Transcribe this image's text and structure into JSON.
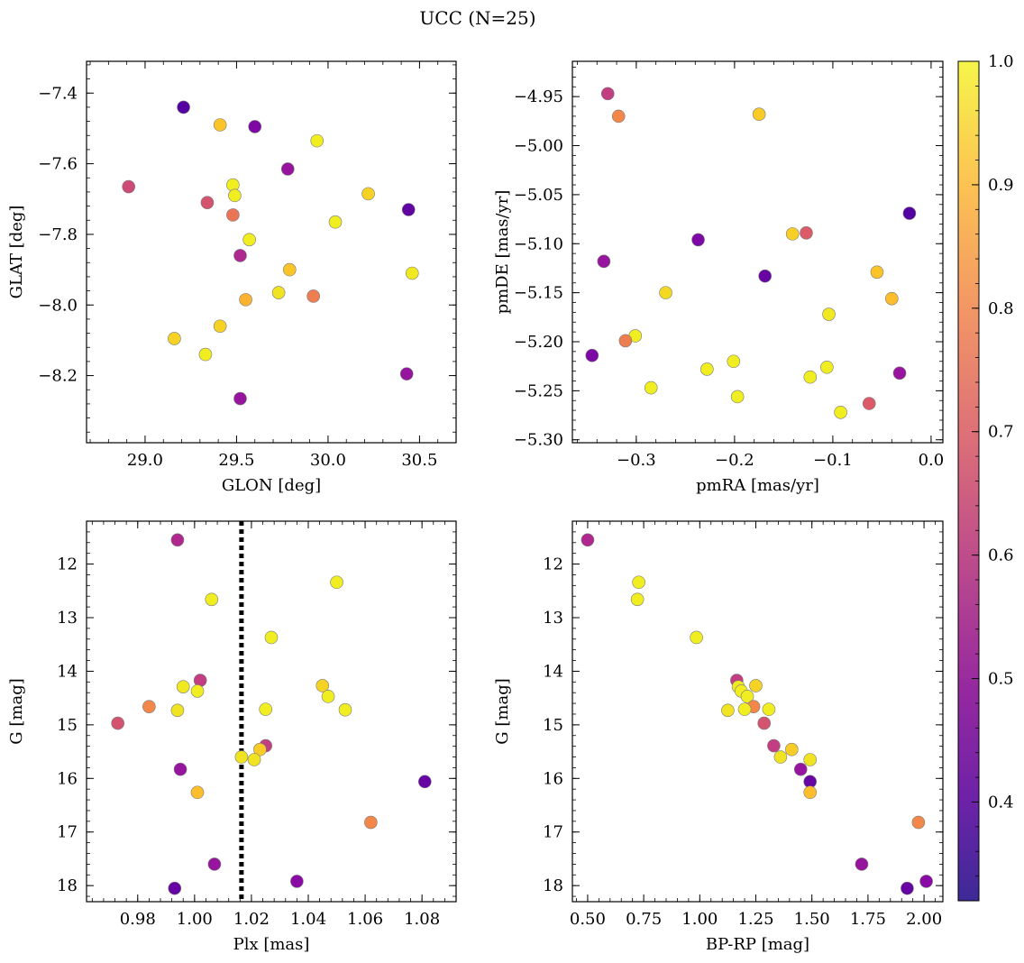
{
  "title": "UCC (N=25)",
  "colorbar": {
    "ticks": [
      0.4,
      0.5,
      0.6,
      0.7,
      0.8,
      0.9,
      1.0
    ],
    "tick_labels": [
      "0.4",
      "0.5",
      "0.6",
      "0.7",
      "0.8",
      "0.9",
      "1.0"
    ],
    "range": [
      0.32,
      1.0
    ],
    "colormap": "plasma"
  },
  "chart_data": [
    {
      "type": "scatter",
      "xlabel": "GLON [deg]",
      "ylabel": "GLAT [deg]",
      "xlim": [
        28.68,
        30.7
      ],
      "ylim": [
        -8.39,
        -7.31
      ],
      "y_inverted": false,
      "xticks": [
        29.0,
        29.5,
        30.0,
        30.5
      ],
      "xtick_labels": [
        "29.0",
        "29.5",
        "30.0",
        "30.5"
      ],
      "yticks": [
        -8.2,
        -8.0,
        -7.8,
        -7.6,
        -7.4
      ],
      "ytick_labels": [
        "−8.2",
        "−8.0",
        "−7.8",
        "−7.6",
        "−7.4"
      ],
      "points": [
        {
          "x": 29.21,
          "y": -7.44,
          "c": 0.33
        },
        {
          "x": 29.41,
          "y": -7.49,
          "c": 0.84
        },
        {
          "x": 29.6,
          "y": -7.495,
          "c": 0.4
        },
        {
          "x": 29.94,
          "y": -7.535,
          "c": 0.97
        },
        {
          "x": 29.78,
          "y": -7.615,
          "c": 0.45
        },
        {
          "x": 28.91,
          "y": -7.665,
          "c": 0.58
        },
        {
          "x": 29.34,
          "y": -7.71,
          "c": 0.6
        },
        {
          "x": 29.48,
          "y": -7.66,
          "c": 0.97
        },
        {
          "x": 29.49,
          "y": -7.69,
          "c": 0.97
        },
        {
          "x": 29.48,
          "y": -7.745,
          "c": 0.68
        },
        {
          "x": 30.22,
          "y": -7.685,
          "c": 0.88
        },
        {
          "x": 30.44,
          "y": -7.73,
          "c": 0.35
        },
        {
          "x": 30.04,
          "y": -7.765,
          "c": 0.97
        },
        {
          "x": 29.57,
          "y": -7.815,
          "c": 0.97
        },
        {
          "x": 29.52,
          "y": -7.86,
          "c": 0.5
        },
        {
          "x": 29.79,
          "y": -7.9,
          "c": 0.84
        },
        {
          "x": 30.46,
          "y": -7.91,
          "c": 0.95
        },
        {
          "x": 29.73,
          "y": -7.965,
          "c": 0.93
        },
        {
          "x": 29.92,
          "y": -7.975,
          "c": 0.7
        },
        {
          "x": 29.55,
          "y": -7.985,
          "c": 0.8
        },
        {
          "x": 29.41,
          "y": -8.06,
          "c": 0.88
        },
        {
          "x": 29.16,
          "y": -8.095,
          "c": 0.88
        },
        {
          "x": 29.33,
          "y": -8.14,
          "c": 0.97
        },
        {
          "x": 30.43,
          "y": -8.195,
          "c": 0.45
        },
        {
          "x": 29.52,
          "y": -8.265,
          "c": 0.45
        }
      ]
    },
    {
      "type": "scatter",
      "xlabel": "pmRA [mas/yr]",
      "ylabel": "pmDE [mas/yr]",
      "xlim": [
        -0.365,
        0.012
      ],
      "ylim": [
        -5.303,
        -4.914
      ],
      "y_inverted": false,
      "xticks": [
        -0.3,
        -0.2,
        -0.1,
        0.0
      ],
      "xtick_labels": [
        "−0.3",
        "−0.2",
        "−0.1",
        "0.0"
      ],
      "yticks": [
        -5.3,
        -5.25,
        -5.2,
        -5.15,
        -5.1,
        -5.05,
        -5.0,
        -4.95
      ],
      "ytick_labels": [
        "−5.30",
        "−5.25",
        "−5.20",
        "−5.15",
        "−5.10",
        "−5.05",
        "−5.00",
        "−4.95"
      ],
      "points": [
        {
          "x": -0.329,
          "y": -4.947,
          "c": 0.55
        },
        {
          "x": -0.318,
          "y": -4.97,
          "c": 0.72
        },
        {
          "x": -0.175,
          "y": -4.968,
          "c": 0.86
        },
        {
          "x": -0.022,
          "y": -5.069,
          "c": 0.33
        },
        {
          "x": -0.237,
          "y": -5.096,
          "c": 0.4
        },
        {
          "x": -0.141,
          "y": -5.09,
          "c": 0.87
        },
        {
          "x": -0.127,
          "y": -5.089,
          "c": 0.62
        },
        {
          "x": -0.333,
          "y": -5.118,
          "c": 0.45
        },
        {
          "x": -0.169,
          "y": -5.133,
          "c": 0.36
        },
        {
          "x": -0.055,
          "y": -5.129,
          "c": 0.84
        },
        {
          "x": -0.27,
          "y": -5.15,
          "c": 0.9
        },
        {
          "x": -0.04,
          "y": -5.156,
          "c": 0.82
        },
        {
          "x": -0.104,
          "y": -5.172,
          "c": 0.95
        },
        {
          "x": -0.301,
          "y": -5.194,
          "c": 0.97
        },
        {
          "x": -0.311,
          "y": -5.199,
          "c": 0.7
        },
        {
          "x": -0.345,
          "y": -5.214,
          "c": 0.4
        },
        {
          "x": -0.201,
          "y": -5.22,
          "c": 0.97
        },
        {
          "x": -0.228,
          "y": -5.228,
          "c": 0.97
        },
        {
          "x": -0.106,
          "y": -5.226,
          "c": 0.97
        },
        {
          "x": -0.032,
          "y": -5.232,
          "c": 0.45
        },
        {
          "x": -0.123,
          "y": -5.236,
          "c": 0.97
        },
        {
          "x": -0.285,
          "y": -5.247,
          "c": 0.97
        },
        {
          "x": -0.197,
          "y": -5.256,
          "c": 0.97
        },
        {
          "x": -0.063,
          "y": -5.263,
          "c": 0.62
        },
        {
          "x": -0.092,
          "y": -5.272,
          "c": 0.97
        }
      ]
    },
    {
      "type": "scatter",
      "xlabel": "Plx [mas]",
      "ylabel": "G [mag]",
      "xlim": [
        0.962,
        1.092
      ],
      "ylim": [
        11.2,
        18.3
      ],
      "y_inverted": true,
      "vline": {
        "x": 1.0165,
        "style": "dotted"
      },
      "xticks": [
        0.98,
        1.0,
        1.02,
        1.04,
        1.06,
        1.08
      ],
      "xtick_labels": [
        "0.98",
        "1.00",
        "1.02",
        "1.04",
        "1.06",
        "1.08"
      ],
      "yticks": [
        12,
        13,
        14,
        15,
        16,
        17,
        18
      ],
      "ytick_labels": [
        "12",
        "13",
        "14",
        "15",
        "16",
        "17",
        "18"
      ],
      "points": [
        {
          "x": 0.994,
          "y": 11.55,
          "c": 0.5
        },
        {
          "x": 1.05,
          "y": 12.34,
          "c": 0.97
        },
        {
          "x": 1.006,
          "y": 12.66,
          "c": 0.97
        },
        {
          "x": 1.027,
          "y": 13.37,
          "c": 0.97
        },
        {
          "x": 1.002,
          "y": 14.17,
          "c": 0.55
        },
        {
          "x": 0.996,
          "y": 14.29,
          "c": 0.95
        },
        {
          "x": 1.001,
          "y": 14.37,
          "c": 0.97
        },
        {
          "x": 1.045,
          "y": 14.27,
          "c": 0.88
        },
        {
          "x": 1.047,
          "y": 14.47,
          "c": 0.97
        },
        {
          "x": 0.984,
          "y": 14.66,
          "c": 0.72
        },
        {
          "x": 0.994,
          "y": 14.73,
          "c": 0.93
        },
        {
          "x": 1.025,
          "y": 14.71,
          "c": 0.97
        },
        {
          "x": 1.053,
          "y": 14.72,
          "c": 0.97
        },
        {
          "x": 0.973,
          "y": 14.97,
          "c": 0.6
        },
        {
          "x": 1.025,
          "y": 15.39,
          "c": 0.55
        },
        {
          "x": 1.023,
          "y": 15.46,
          "c": 0.86
        },
        {
          "x": 1.0165,
          "y": 15.6,
          "c": 0.93
        },
        {
          "x": 1.021,
          "y": 15.65,
          "c": 0.93
        },
        {
          "x": 0.995,
          "y": 15.83,
          "c": 0.45
        },
        {
          "x": 1.081,
          "y": 16.06,
          "c": 0.36
        },
        {
          "x": 1.001,
          "y": 16.26,
          "c": 0.82
        },
        {
          "x": 1.062,
          "y": 16.82,
          "c": 0.72
        },
        {
          "x": 1.007,
          "y": 17.6,
          "c": 0.45
        },
        {
          "x": 1.036,
          "y": 17.92,
          "c": 0.42
        },
        {
          "x": 0.993,
          "y": 18.05,
          "c": 0.36
        }
      ]
    },
    {
      "type": "scatter",
      "xlabel": "BP-RP [mag]",
      "ylabel": "G [mag]",
      "xlim": [
        0.432,
        2.084
      ],
      "ylim": [
        11.2,
        18.3
      ],
      "y_inverted": true,
      "xticks": [
        0.5,
        0.75,
        1.0,
        1.25,
        1.5,
        1.75,
        2.0
      ],
      "xtick_labels": [
        "0.50",
        "0.75",
        "1.00",
        "1.25",
        "1.50",
        "1.75",
        "2.00"
      ],
      "yticks": [
        12,
        13,
        14,
        15,
        16,
        17,
        18
      ],
      "ytick_labels": [
        "12",
        "13",
        "14",
        "15",
        "16",
        "17",
        "18"
      ],
      "points": [
        {
          "x": 0.5,
          "y": 11.55,
          "c": 0.5
        },
        {
          "x": 0.728,
          "y": 12.34,
          "c": 0.97
        },
        {
          "x": 0.722,
          "y": 12.66,
          "c": 0.97
        },
        {
          "x": 0.985,
          "y": 13.37,
          "c": 0.97
        },
        {
          "x": 1.165,
          "y": 14.17,
          "c": 0.55
        },
        {
          "x": 1.172,
          "y": 14.29,
          "c": 0.95
        },
        {
          "x": 1.185,
          "y": 14.37,
          "c": 0.97
        },
        {
          "x": 1.25,
          "y": 14.27,
          "c": 0.88
        },
        {
          "x": 1.212,
          "y": 14.47,
          "c": 0.97
        },
        {
          "x": 1.24,
          "y": 14.66,
          "c": 0.72
        },
        {
          "x": 1.125,
          "y": 14.73,
          "c": 0.93
        },
        {
          "x": 1.2,
          "y": 14.71,
          "c": 0.97
        },
        {
          "x": 1.308,
          "y": 14.71,
          "c": 0.97
        },
        {
          "x": 1.287,
          "y": 14.97,
          "c": 0.6
        },
        {
          "x": 1.33,
          "y": 15.39,
          "c": 0.55
        },
        {
          "x": 1.41,
          "y": 15.46,
          "c": 0.86
        },
        {
          "x": 1.36,
          "y": 15.6,
          "c": 0.93
        },
        {
          "x": 1.492,
          "y": 15.65,
          "c": 0.93
        },
        {
          "x": 1.45,
          "y": 15.83,
          "c": 0.45
        },
        {
          "x": 1.492,
          "y": 16.06,
          "c": 0.36
        },
        {
          "x": 1.492,
          "y": 16.26,
          "c": 0.82
        },
        {
          "x": 1.975,
          "y": 16.82,
          "c": 0.72
        },
        {
          "x": 1.722,
          "y": 17.6,
          "c": 0.45
        },
        {
          "x": 2.01,
          "y": 17.92,
          "c": 0.42
        },
        {
          "x": 1.925,
          "y": 18.05,
          "c": 0.36
        }
      ]
    }
  ]
}
